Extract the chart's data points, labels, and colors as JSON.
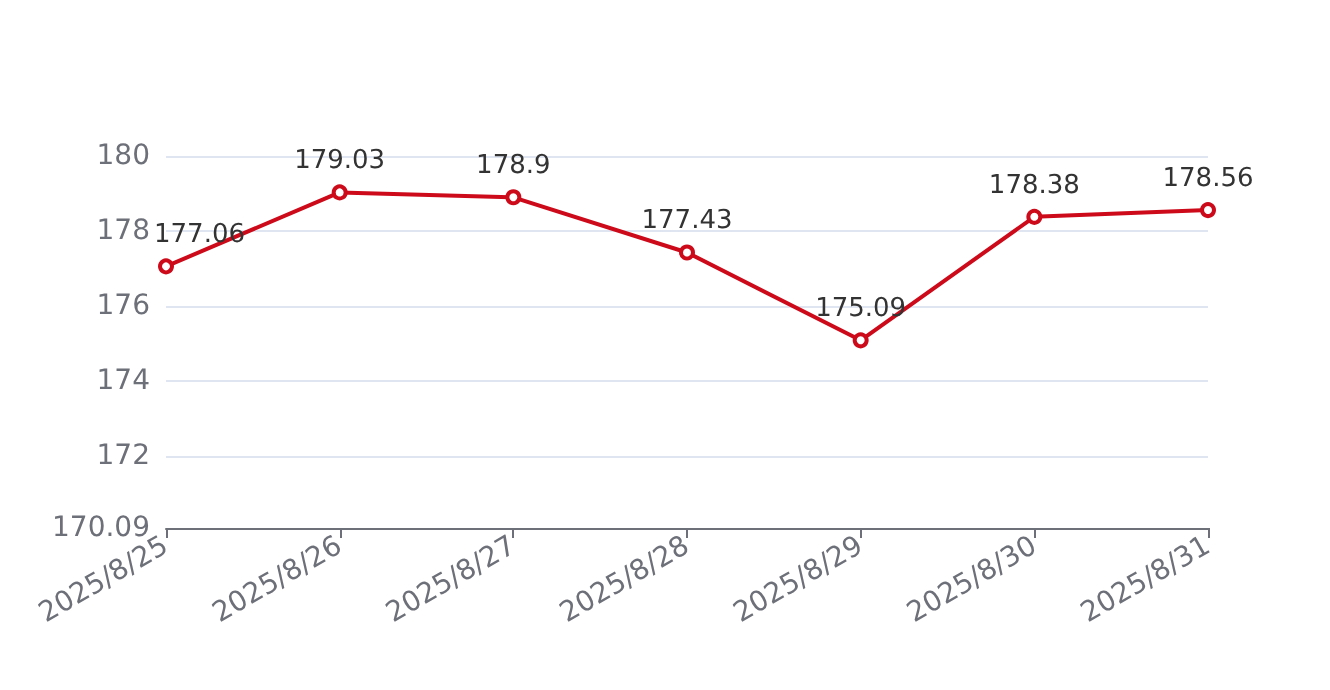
{
  "chart_data": {
    "type": "line",
    "categories": [
      "2025/8/25",
      "2025/8/26",
      "2025/8/27",
      "2025/8/28",
      "2025/8/29",
      "2025/8/30",
      "2025/8/31"
    ],
    "series": [
      {
        "color": "#cc0a1a",
        "values": [
          177.06,
          179.03,
          178.9,
          177.43,
          175.09,
          178.38,
          178.56
        ]
      }
    ],
    "ylim": [
      170.09,
      180
    ],
    "yticks": [
      170.09,
      172,
      174,
      176,
      178,
      180
    ],
    "grid": "y",
    "data_labels": true,
    "marker": "circle",
    "line_style": "solid"
  }
}
